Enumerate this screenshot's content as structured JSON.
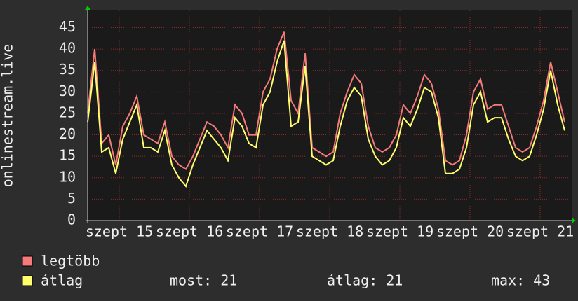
{
  "chart_data": {
    "type": "line",
    "y_label": "onlinestream.live",
    "x": [
      14.55,
      14.65,
      14.75,
      14.85,
      14.95,
      15.05,
      15.15,
      15.25,
      15.35,
      15.45,
      15.55,
      15.65,
      15.75,
      15.85,
      15.95,
      16.05,
      16.15,
      16.25,
      16.35,
      16.45,
      16.55,
      16.65,
      16.75,
      16.85,
      16.95,
      17.05,
      17.15,
      17.25,
      17.35,
      17.45,
      17.55,
      17.65,
      17.75,
      17.85,
      17.95,
      18.05,
      18.15,
      18.25,
      18.35,
      18.45,
      18.55,
      18.65,
      18.75,
      18.85,
      18.95,
      19.05,
      19.15,
      19.25,
      19.35,
      19.45,
      19.55,
      19.65,
      19.75,
      19.85,
      19.95,
      20.05,
      20.15,
      20.25,
      20.35,
      20.45,
      20.55,
      20.65,
      20.75,
      20.85,
      20.95,
      21.05,
      21.15,
      21.25,
      21.35
    ],
    "series": [
      {
        "name": "legtöbb",
        "color": "#f57a7a",
        "values": [
          25,
          40,
          18,
          20,
          13,
          22,
          25,
          29,
          20,
          19,
          18,
          23,
          15,
          13,
          12,
          15,
          19,
          23,
          22,
          20,
          17,
          27,
          25,
          20,
          20,
          30,
          33,
          40,
          44,
          28,
          25,
          39,
          17,
          16,
          15,
          16,
          25,
          30,
          34,
          32,
          22,
          17,
          16,
          17,
          20,
          27,
          25,
          29,
          34,
          32,
          26,
          14,
          13,
          14,
          20,
          30,
          33,
          26,
          27,
          27,
          22,
          17,
          16,
          17,
          22,
          28,
          37,
          30,
          23
        ]
      },
      {
        "name": "átlag",
        "color": "#ffff6e",
        "values": [
          23,
          37,
          16,
          17,
          11,
          19,
          23,
          27,
          17,
          17,
          16,
          21,
          13,
          10,
          8,
          13,
          17,
          21,
          19,
          17,
          14,
          24,
          22,
          18,
          17,
          27,
          30,
          37,
          42,
          22,
          23,
          36,
          15,
          14,
          13,
          14,
          22,
          28,
          31,
          29,
          19,
          15,
          13,
          14,
          17,
          24,
          22,
          26,
          31,
          30,
          24,
          11,
          11,
          12,
          17,
          27,
          30,
          23,
          24,
          24,
          19,
          15,
          14,
          15,
          20,
          26,
          35,
          27,
          21
        ]
      }
    ],
    "xlim": [
      14.55,
      21.5
    ],
    "xticks": [
      {
        "value": 15,
        "label": "szept 15"
      },
      {
        "value": 16,
        "label": "szept 16"
      },
      {
        "value": 17,
        "label": "szept 17"
      },
      {
        "value": 18,
        "label": "szept 18"
      },
      {
        "value": 19,
        "label": "szept 19"
      },
      {
        "value": 20,
        "label": "szept 20"
      },
      {
        "value": 21,
        "label": "szept 21"
      }
    ],
    "ylim": [
      0,
      49
    ],
    "yticks": [
      0,
      5,
      10,
      15,
      20,
      25,
      30,
      35,
      40,
      45
    ],
    "grid": true,
    "stats": [
      {
        "label": "most:",
        "value": 21
      },
      {
        "label": "átlag:",
        "value": 21
      },
      {
        "label": "max:",
        "value": 43
      }
    ]
  }
}
